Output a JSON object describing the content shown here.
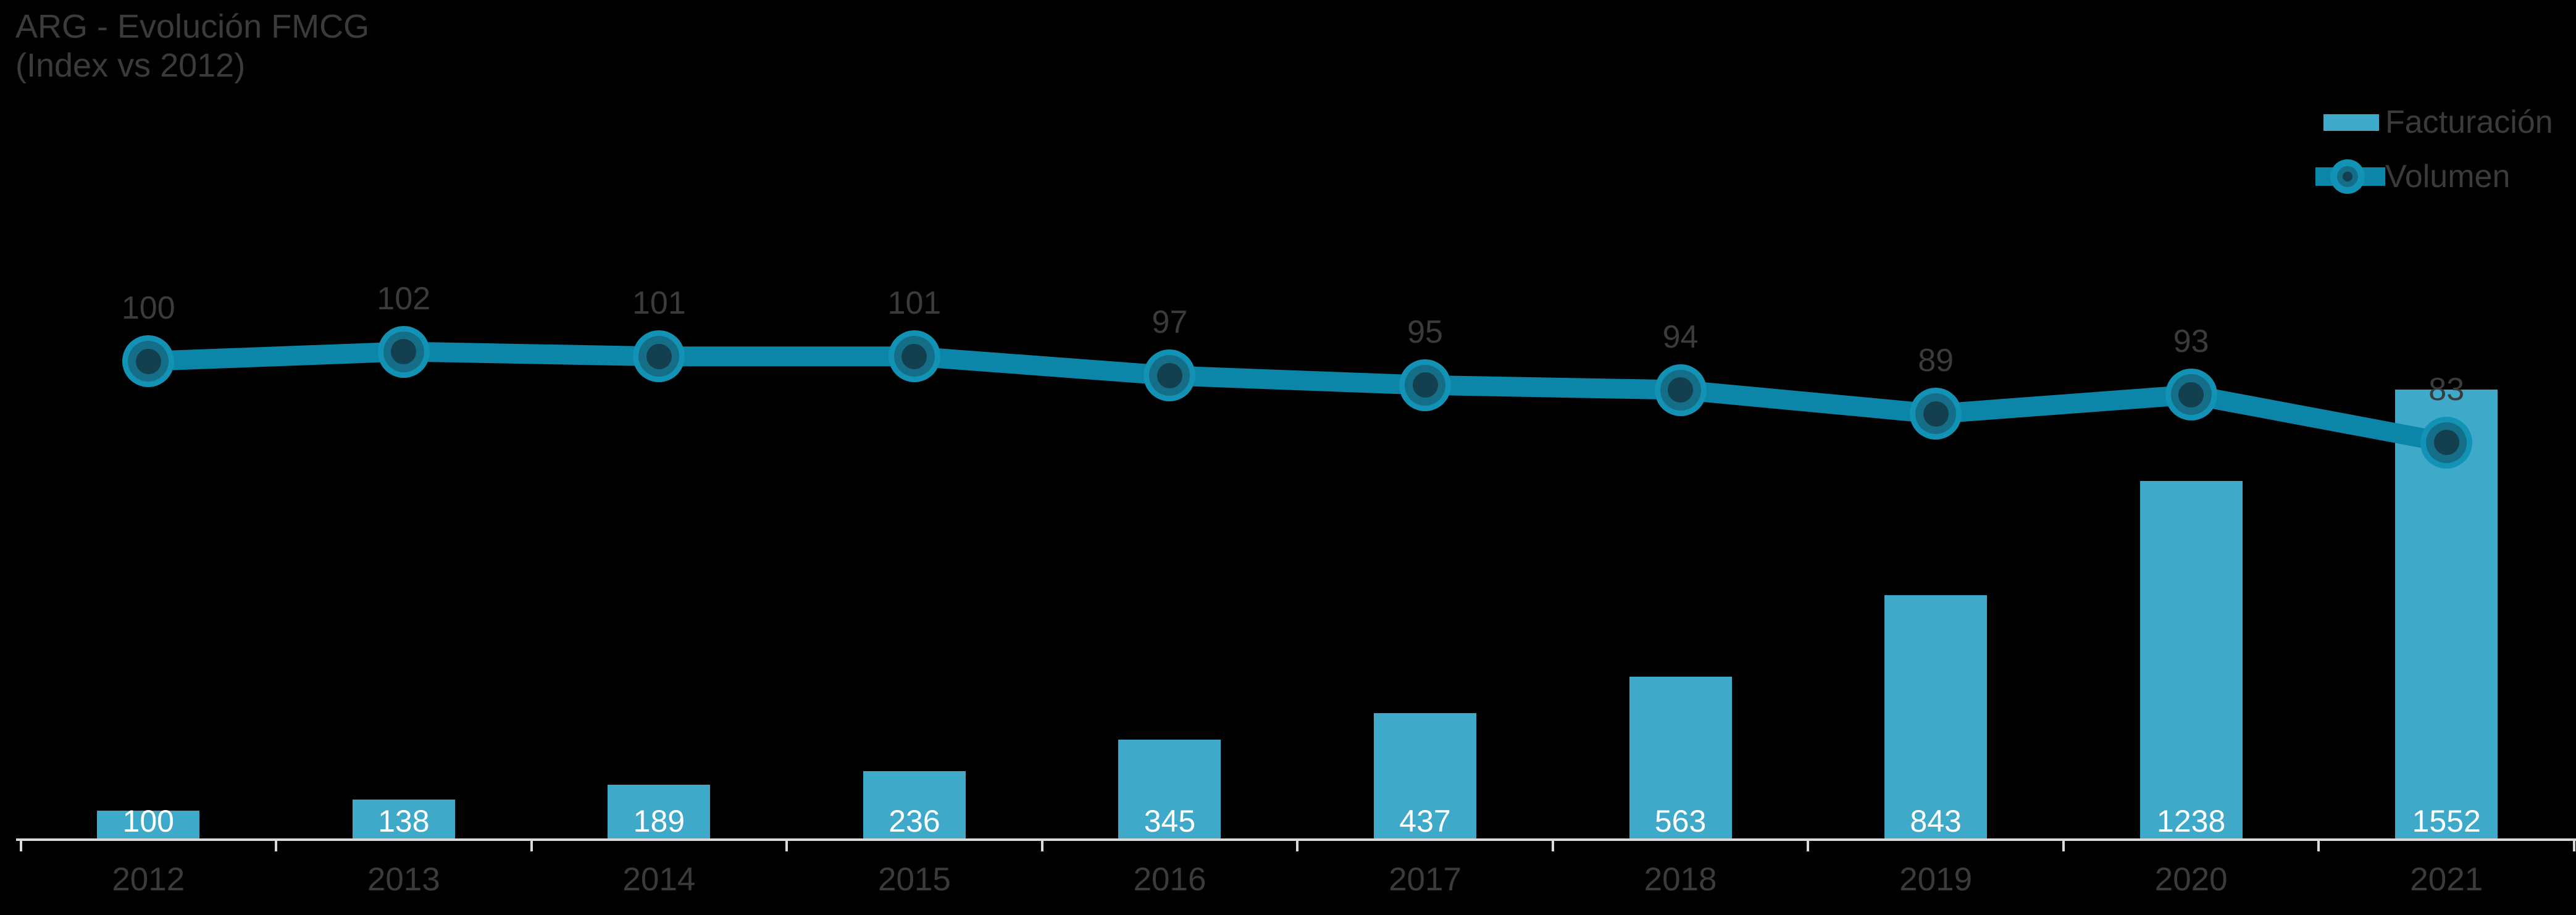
{
  "title": {
    "line1": "ARG - Evolución FMCG",
    "line2": "(Index vs 2012)"
  },
  "legend": {
    "items": [
      {
        "label": "Facturación",
        "swatch": "bar-swatch"
      },
      {
        "label": "Volumen",
        "swatch": "line-marker-swatch"
      }
    ]
  },
  "colors": {
    "background": "#000000",
    "bar": "#3EA9C9",
    "line": "#0C86A8",
    "marker_outer": "#1292B4",
    "marker_mid": "#156E88",
    "marker_inner": "#133F4E",
    "axis": "#D9D9D9",
    "bar_label": "#FFFFFF",
    "text": "#3B3B3B"
  },
  "chart_data": {
    "type": "bar+line combo",
    "title": "ARG - Evolución FMCG (Index vs 2012)",
    "categories": [
      "2012",
      "2013",
      "2014",
      "2015",
      "2016",
      "2017",
      "2018",
      "2019",
      "2020",
      "2021"
    ],
    "series": [
      {
        "name": "Facturación",
        "type": "bar",
        "color": "#3EA9C9",
        "labels_position": "inside-base",
        "values": [
          100,
          138,
          189,
          236,
          345,
          437,
          563,
          843,
          1238,
          1552
        ]
      },
      {
        "name": "Volumen",
        "type": "line",
        "color": "#0C86A8",
        "labels_position": "above",
        "values": [
          100,
          102,
          101,
          101,
          97,
          95,
          94,
          89,
          93,
          83
        ]
      }
    ],
    "xlabel": "",
    "ylabel": "",
    "legend_position": "top-right",
    "grid": false,
    "y_axis_visible": false,
    "baseline_value": 0
  }
}
